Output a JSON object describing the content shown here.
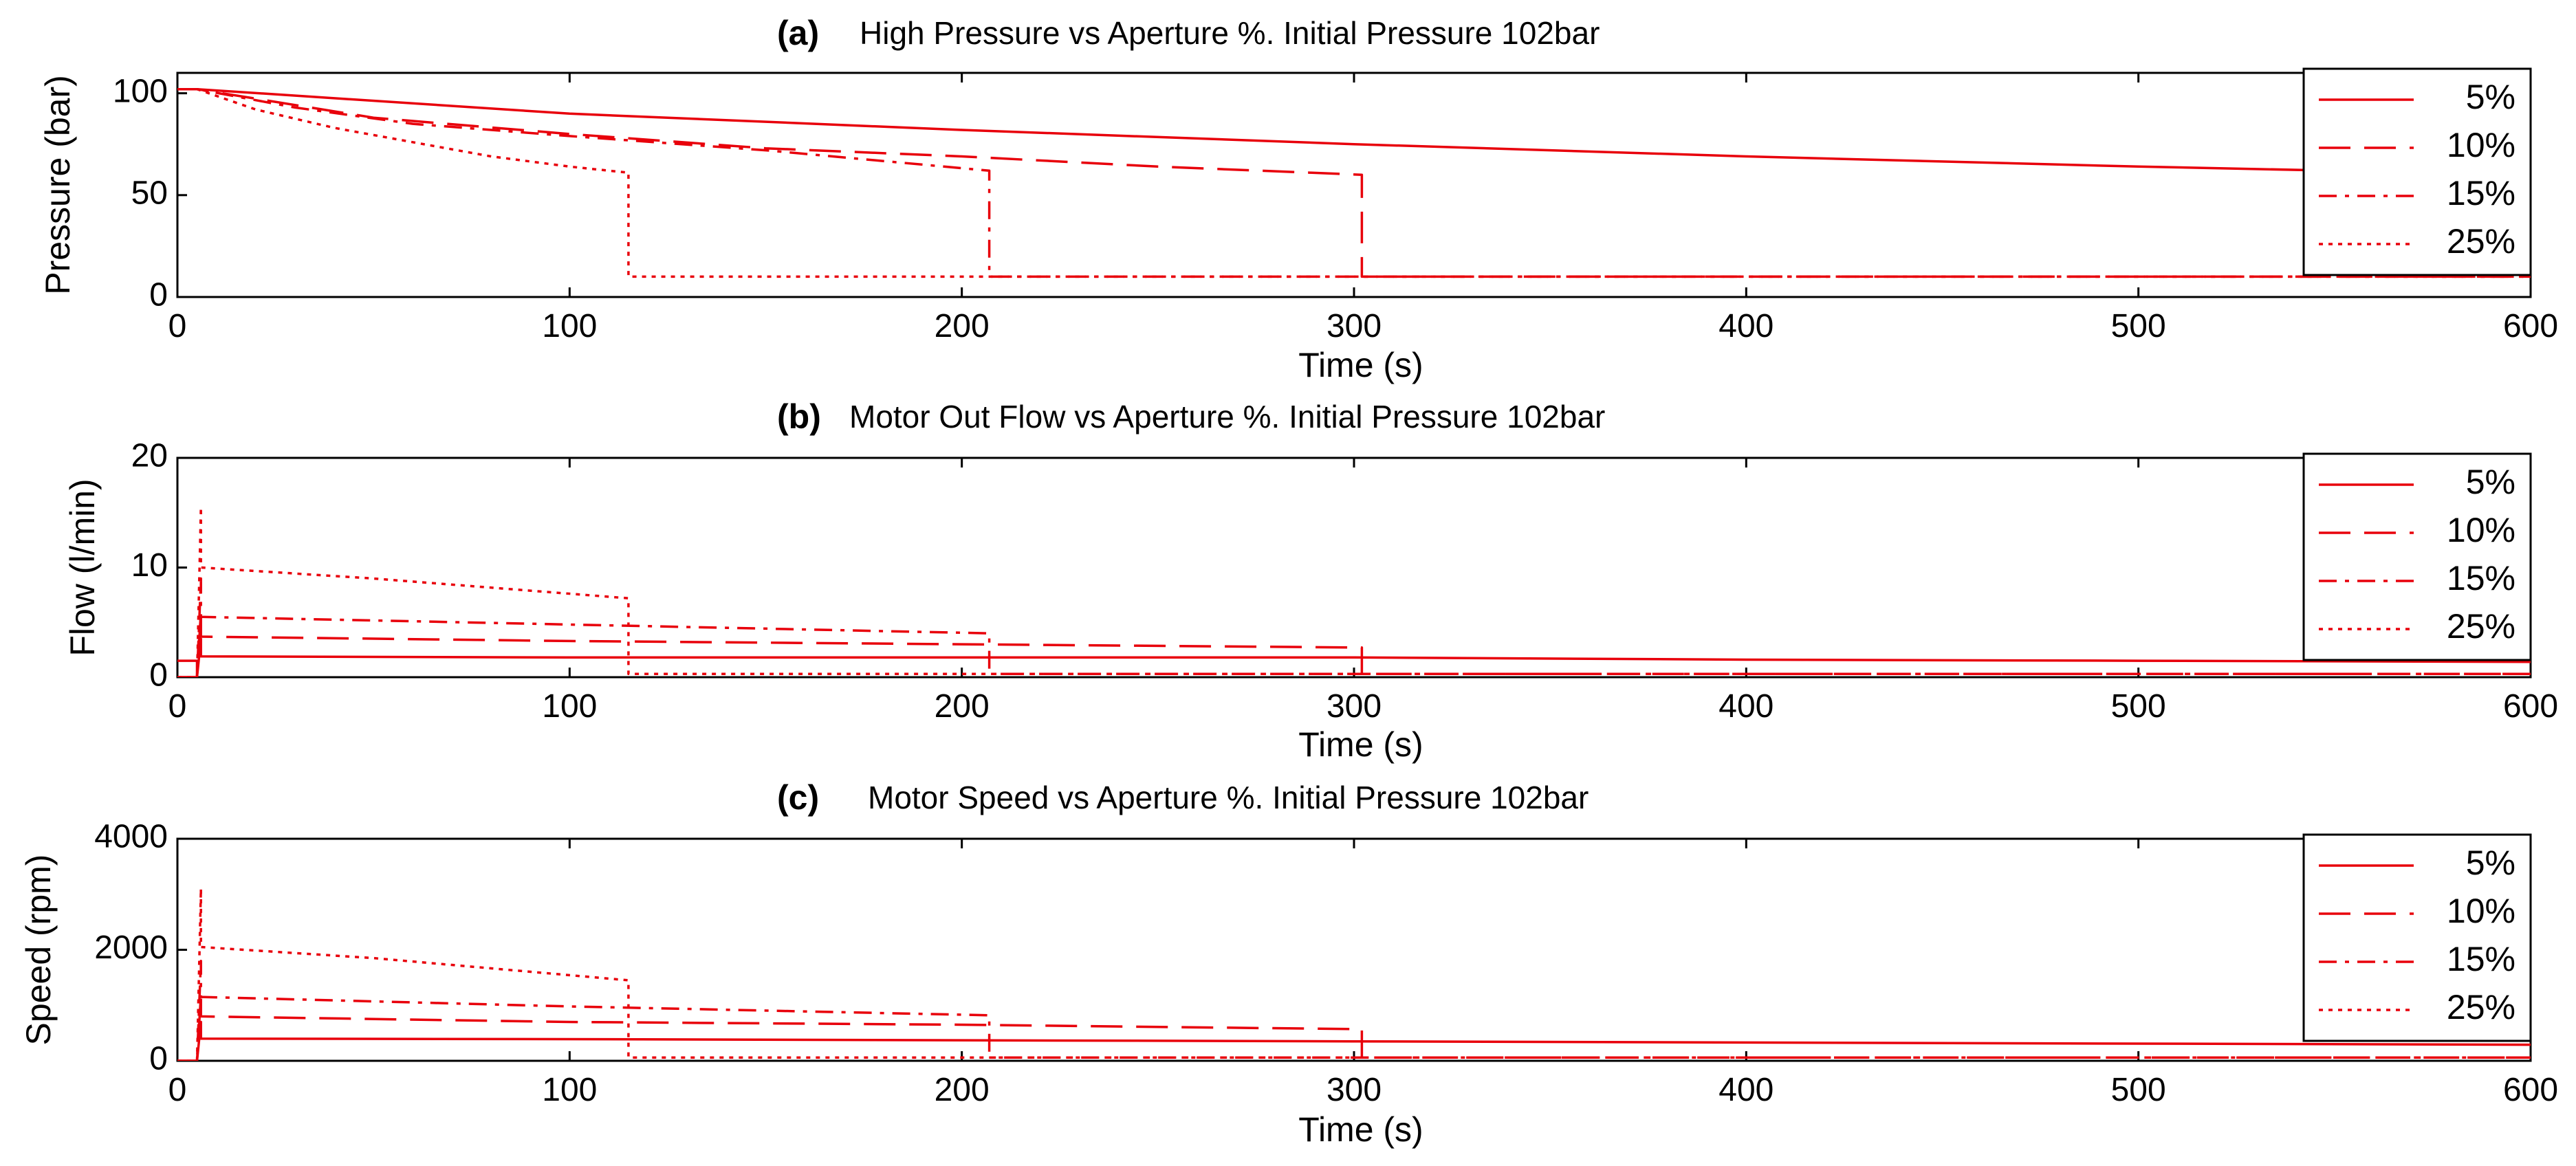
{
  "chart_data": [
    {
      "type": "line",
      "panel": "(a)",
      "title": "High Pressure vs Aperture %. Initial Pressure 102bar",
      "xlabel": "Time (s)",
      "ylabel": "Pressure (bar)",
      "xlim": [
        0,
        600
      ],
      "ylim": [
        0,
        110
      ],
      "xticks": [
        0,
        100,
        200,
        300,
        400,
        500,
        600
      ],
      "yticks": [
        0,
        50,
        100
      ],
      "legend_position": "right",
      "color": "#e8000b",
      "series": [
        {
          "name": "5%",
          "dash": "solid",
          "x": [
            0,
            5,
            100,
            200,
            300,
            400,
            500,
            600
          ],
          "y": [
            102,
            102,
            90,
            82,
            75,
            69,
            64,
            60
          ]
        },
        {
          "name": "10%",
          "dash": "long-dash",
          "x": [
            0,
            5,
            50,
            100,
            150,
            200,
            250,
            302,
            302,
            600
          ],
          "y": [
            102,
            102,
            88,
            80,
            73,
            69,
            64,
            60,
            10,
            10
          ]
        },
        {
          "name": "15%",
          "dash": "dash-dot",
          "x": [
            0,
            5,
            30,
            60,
            100,
            150,
            207,
            207,
            600
          ],
          "y": [
            102,
            102,
            93,
            85,
            79,
            72,
            62,
            10,
            10
          ]
        },
        {
          "name": "25%",
          "dash": "dotted",
          "x": [
            0,
            5,
            20,
            40,
            60,
            80,
            100,
            115,
            115,
            600
          ],
          "y": [
            102,
            102,
            92,
            83,
            76,
            69,
            64,
            61,
            10,
            10
          ]
        }
      ]
    },
    {
      "type": "line",
      "panel": "(b)",
      "title": "Motor Out Flow vs Aperture %. Initial Pressure 102bar",
      "xlabel": "Time (s)",
      "ylabel": "Flow (l/min)",
      "xlim": [
        0,
        600
      ],
      "ylim": [
        0,
        20
      ],
      "xticks": [
        0,
        100,
        200,
        300,
        400,
        500,
        600
      ],
      "yticks": [
        0,
        10,
        20
      ],
      "legend_position": "right",
      "color": "#e8000b",
      "series": [
        {
          "name": "5%",
          "dash": "solid",
          "x": [
            0,
            5,
            5,
            6,
            6,
            100,
            200,
            300,
            400,
            500,
            600
          ],
          "y": [
            1.5,
            1.5,
            0,
            3.5,
            1.9,
            1.8,
            1.8,
            1.8,
            1.6,
            1.5,
            1.4
          ]
        },
        {
          "name": "10%",
          "dash": "long-dash",
          "x": [
            0,
            5,
            5,
            6,
            6,
            100,
            200,
            302,
            302,
            600
          ],
          "y": [
            0,
            0,
            0,
            6,
            3.7,
            3.3,
            3.0,
            2.7,
            0.3,
            0.3
          ]
        },
        {
          "name": "15%",
          "dash": "dash-dot",
          "x": [
            0,
            5,
            5,
            6,
            6,
            100,
            207,
            207,
            600
          ],
          "y": [
            0,
            0,
            0,
            9,
            5.5,
            4.8,
            4.0,
            0.3,
            0.3
          ]
        },
        {
          "name": "25%",
          "dash": "dotted",
          "x": [
            0,
            5,
            5,
            6,
            6,
            50,
            115,
            115,
            600
          ],
          "y": [
            0,
            0,
            0,
            15.5,
            10,
            9,
            7.2,
            0.3,
            0.3
          ]
        }
      ]
    },
    {
      "type": "line",
      "panel": "(c)",
      "title": "Motor Speed vs Aperture %. Initial Pressure 102bar",
      "xlabel": "Time (s)",
      "ylabel": "Speed (rpm)",
      "xlim": [
        0,
        600
      ],
      "ylim": [
        0,
        4000
      ],
      "xticks": [
        0,
        100,
        200,
        300,
        400,
        500,
        600
      ],
      "yticks": [
        0,
        2000,
        4000
      ],
      "legend_position": "right",
      "color": "#e8000b",
      "series": [
        {
          "name": "5%",
          "dash": "solid",
          "x": [
            0,
            5,
            5,
            6,
            6,
            100,
            200,
            300,
            400,
            500,
            600
          ],
          "y": [
            0,
            0,
            0,
            700,
            400,
            390,
            370,
            350,
            330,
            310,
            290
          ]
        },
        {
          "name": "10%",
          "dash": "long-dash",
          "x": [
            0,
            5,
            5,
            6,
            6,
            100,
            200,
            302,
            302,
            600
          ],
          "y": [
            0,
            0,
            0,
            1200,
            800,
            700,
            650,
            570,
            60,
            60
          ]
        },
        {
          "name": "15%",
          "dash": "dash-dot",
          "x": [
            0,
            5,
            5,
            6,
            6,
            100,
            207,
            207,
            600
          ],
          "y": [
            0,
            0,
            0,
            1800,
            1150,
            980,
            820,
            60,
            60
          ]
        },
        {
          "name": "25%",
          "dash": "dotted",
          "x": [
            0,
            5,
            5,
            6,
            6,
            50,
            115,
            115,
            600
          ],
          "y": [
            0,
            0,
            0,
            3100,
            2050,
            1850,
            1450,
            60,
            60
          ]
        }
      ]
    }
  ]
}
